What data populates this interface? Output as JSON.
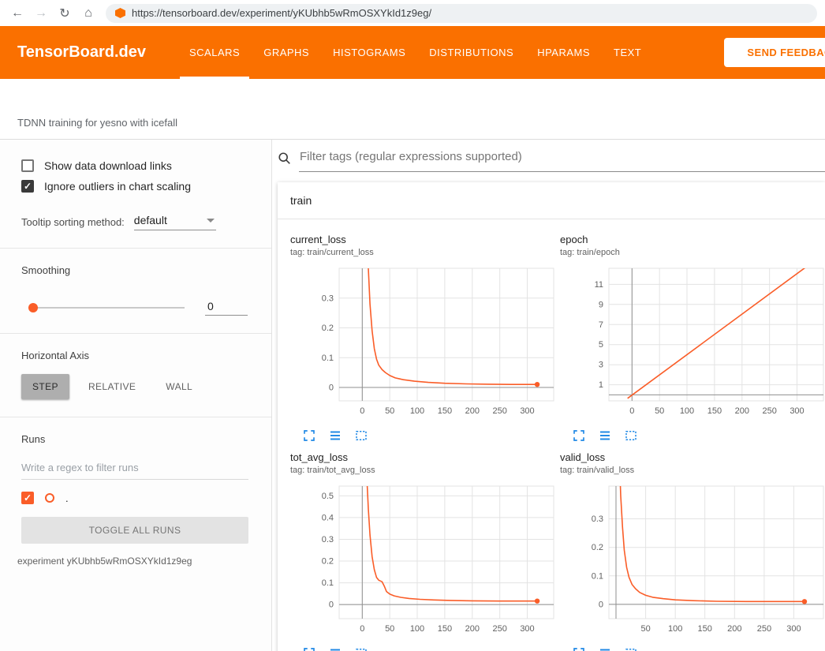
{
  "palette": {
    "header_orange": "#fa7000",
    "accent_blue": "#1e88e5",
    "run_orange": "#fa5d28"
  },
  "browser": {
    "url": "https://tensorboard.dev/experiment/yKUbhb5wRmOSXYkId1z9eg/"
  },
  "header": {
    "brand": "TensorBoard.dev",
    "tabs": [
      {
        "label": "SCALARS",
        "active": true
      },
      {
        "label": "GRAPHS",
        "active": false
      },
      {
        "label": "HISTOGRAMS",
        "active": false
      },
      {
        "label": "DISTRIBUTIONS",
        "active": false
      },
      {
        "label": "HPARAMS",
        "active": false
      },
      {
        "label": "TEXT",
        "active": false
      }
    ],
    "feedback_button": "SEND FEEDBACK"
  },
  "subheader": {
    "experiment_title": "TDNN training for yesno with icefall"
  },
  "sidebar": {
    "show_download": {
      "label": "Show data download links",
      "checked": false
    },
    "ignore_outliers": {
      "label": "Ignore outliers in chart scaling",
      "checked": true
    },
    "tooltip_sorting": {
      "label": "Tooltip sorting method:",
      "value": "default"
    },
    "smoothing": {
      "label": "Smoothing",
      "value": "0"
    },
    "horizontal_axis": {
      "label": "Horizontal Axis",
      "options": [
        {
          "label": "STEP",
          "selected": true
        },
        {
          "label": "RELATIVE",
          "selected": false
        },
        {
          "label": "WALL",
          "selected": false
        }
      ]
    },
    "runs": {
      "label": "Runs",
      "filter_placeholder": "Write a regex to filter runs",
      "items": [
        {
          "name": ".",
          "checked": true,
          "color": "#fa5d28"
        }
      ],
      "toggle_button": "TOGGLE ALL RUNS",
      "experiment_caption": "experiment yKUbhb5wRmOSXYkId1z9eg"
    }
  },
  "main": {
    "filter_placeholder": "Filter tags (regular expressions supported)",
    "section_title": "train"
  },
  "chart_data": [
    {
      "type": "line",
      "title": "current_loss",
      "tag": "tag: train/current_loss",
      "xlabel": "step",
      "xlim": [
        -42,
        348
      ],
      "ylim": [
        -0.045,
        0.4
      ],
      "x_ticks": [
        0,
        50,
        100,
        150,
        200,
        250,
        300
      ],
      "y_ticks": [
        0,
        0.1,
        0.2,
        0.3
      ],
      "grid": true,
      "color": "#fa5d28",
      "endpoint_dot": true,
      "series": [
        {
          "name": ".",
          "points": [
            [
              4,
              1.2
            ],
            [
              8,
              0.55
            ],
            [
              11,
              0.4
            ],
            [
              14,
              0.28
            ],
            [
              18,
              0.19
            ],
            [
              22,
              0.13
            ],
            [
              26,
              0.095
            ],
            [
              30,
              0.075
            ],
            [
              36,
              0.06
            ],
            [
              42,
              0.05
            ],
            [
              50,
              0.04
            ],
            [
              60,
              0.032
            ],
            [
              75,
              0.026
            ],
            [
              95,
              0.021
            ],
            [
              120,
              0.017
            ],
            [
              150,
              0.014
            ],
            [
              190,
              0.012
            ],
            [
              230,
              0.011
            ],
            [
              270,
              0.01
            ],
            [
              318,
              0.01
            ]
          ]
        }
      ]
    },
    {
      "type": "line",
      "title": "epoch",
      "tag": "tag: train/epoch",
      "xlabel": "step",
      "xlim": [
        -42,
        348
      ],
      "ylim": [
        -0.6,
        12.6
      ],
      "x_ticks": [
        0,
        50,
        100,
        150,
        200,
        250,
        300
      ],
      "y_ticks": [
        1,
        3,
        5,
        7,
        9,
        11
      ],
      "grid": true,
      "color": "#fa5d28",
      "endpoint_dot": false,
      "series": [
        {
          "name": ".",
          "points": [
            [
              -8,
              -0.35
            ],
            [
              322,
              12.95
            ]
          ]
        }
      ]
    },
    {
      "type": "line",
      "title": "tot_avg_loss",
      "tag": "tag: train/tot_avg_loss",
      "xlabel": "step",
      "xlim": [
        -42,
        348
      ],
      "ylim": [
        -0.065,
        0.545
      ],
      "x_ticks": [
        0,
        50,
        100,
        150,
        200,
        250,
        300
      ],
      "y_ticks": [
        0,
        0.1,
        0.2,
        0.3,
        0.4,
        0.5
      ],
      "grid": true,
      "color": "#fa5d28",
      "endpoint_dot": true,
      "series": [
        {
          "name": ".",
          "points": [
            [
              4,
              1.2
            ],
            [
              8,
              0.6
            ],
            [
              11,
              0.44
            ],
            [
              14,
              0.32
            ],
            [
              18,
              0.22
            ],
            [
              22,
              0.16
            ],
            [
              26,
              0.125
            ],
            [
              30,
              0.112
            ],
            [
              36,
              0.105
            ],
            [
              40,
              0.085
            ],
            [
              44,
              0.06
            ],
            [
              50,
              0.048
            ],
            [
              58,
              0.04
            ],
            [
              70,
              0.033
            ],
            [
              85,
              0.028
            ],
            [
              105,
              0.024
            ],
            [
              130,
              0.021
            ],
            [
              160,
              0.019
            ],
            [
              200,
              0.017
            ],
            [
              250,
              0.016
            ],
            [
              318,
              0.016
            ]
          ]
        }
      ]
    },
    {
      "type": "line",
      "title": "valid_loss",
      "tag": "tag: train/valid_loss",
      "xlabel": "step",
      "xlim": [
        -12,
        350
      ],
      "ylim": [
        -0.05,
        0.415
      ],
      "x_ticks": [
        50,
        100,
        150,
        200,
        250,
        300
      ],
      "y_ticks": [
        0,
        0.1,
        0.2,
        0.3
      ],
      "grid": true,
      "color": "#fa5d28",
      "endpoint_dot": true,
      "series": [
        {
          "name": ".",
          "points": [
            [
              2,
              1.0
            ],
            [
              5,
              0.55
            ],
            [
              8,
              0.38
            ],
            [
              11,
              0.27
            ],
            [
              14,
              0.19
            ],
            [
              18,
              0.13
            ],
            [
              22,
              0.095
            ],
            [
              27,
              0.07
            ],
            [
              33,
              0.055
            ],
            [
              40,
              0.042
            ],
            [
              50,
              0.032
            ],
            [
              62,
              0.025
            ],
            [
              80,
              0.02
            ],
            [
              100,
              0.016
            ],
            [
              130,
              0.013
            ],
            [
              170,
              0.011
            ],
            [
              220,
              0.01
            ],
            [
              270,
              0.01
            ],
            [
              318,
              0.01
            ]
          ]
        }
      ]
    }
  ]
}
